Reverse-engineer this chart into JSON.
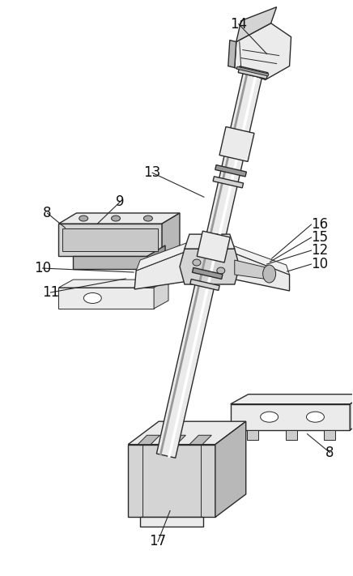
{
  "bg_color": "#ffffff",
  "line_color": "#2a2a2a",
  "fill_light": "#ebebeb",
  "fill_mid": "#d4d4d4",
  "fill_dark": "#b8b8b8",
  "fill_darker": "#9a9a9a",
  "rod_color": "#dcdcdc",
  "rod_shadow": "#aaaaaa"
}
